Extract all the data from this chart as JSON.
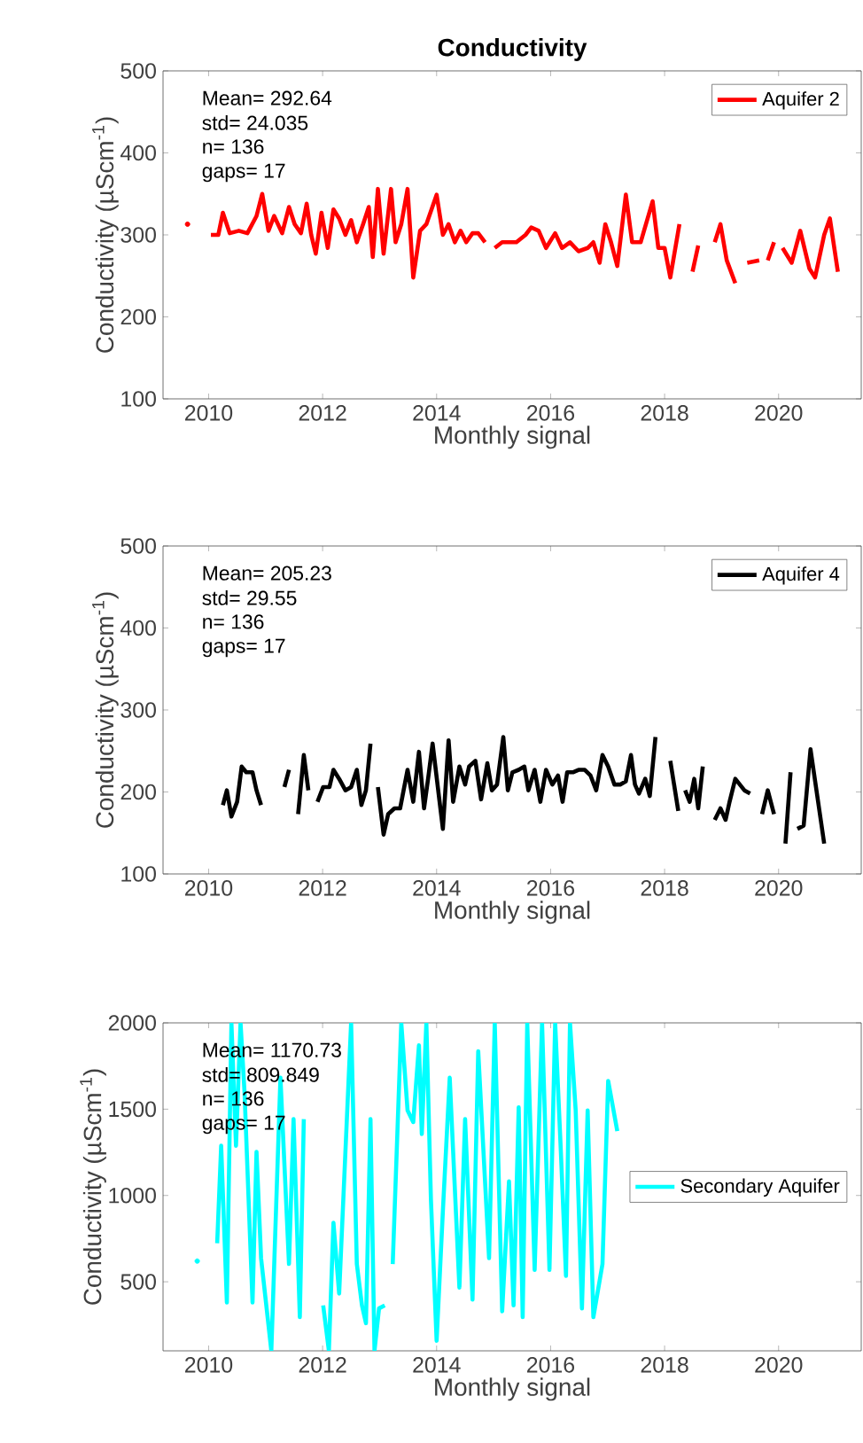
{
  "chart_data": [
    {
      "type": "line",
      "title": "Conductivity",
      "xlabel": "Monthly signal",
      "ylabel": "Conductivity (µScm$^{-1}$)",
      "annotations": [
        "Mean=  292.64",
        "std=      24.035",
        "n=        136",
        "gaps= 17"
      ],
      "xlim": [
        2009.2,
        2021.45
      ],
      "ylim": [
        100,
        500
      ],
      "xticks": [
        2010,
        2012,
        2014,
        2016,
        2018,
        2020
      ],
      "yticks": [
        100,
        200,
        300,
        400,
        500
      ],
      "legend": "top right",
      "series": [
        {
          "name": "Aquifer 2",
          "color": "#ff0000",
          "x": [
            2009.63,
            2009.8,
            2010.04,
            2010.17,
            2010.25,
            2010.37,
            2010.53,
            2010.68,
            2010.84,
            2010.94,
            2011.05,
            2011.15,
            2011.29,
            2011.41,
            2011.51,
            2011.62,
            2011.72,
            2011.8,
            2011.88,
            2011.98,
            2012.09,
            2012.19,
            2012.29,
            2012.4,
            2012.5,
            2012.6,
            2012.71,
            2012.81,
            2012.88,
            2012.97,
            2013.07,
            2013.2,
            2013.28,
            2013.38,
            2013.49,
            2013.59,
            2013.71,
            2013.82,
            2014.0,
            2014.11,
            2014.21,
            2014.32,
            2014.42,
            2014.52,
            2014.63,
            2014.73,
            2014.85,
            2014.94,
            2015.02,
            2015.15,
            2015.25,
            2015.4,
            2015.56,
            2015.66,
            2015.79,
            2015.92,
            2016.08,
            2016.2,
            2016.34,
            2016.49,
            2016.65,
            2016.75,
            2016.86,
            2016.96,
            2017.06,
            2017.17,
            2017.32,
            2017.43,
            2017.58,
            2017.79,
            2017.89,
            2018.0,
            2018.1,
            2018.26,
            2018.38,
            2018.49,
            2018.59,
            2018.7,
            2018.88,
            2018.98,
            2019.09,
            2019.24,
            2019.35,
            2019.45,
            2019.66,
            2019.74,
            2019.81,
            2019.92,
            2020.0,
            2020.07,
            2020.23,
            2020.38,
            2020.54,
            2020.64,
            2020.8,
            2020.9,
            2021.04
          ],
          "values": [
            313,
            null,
            300,
            300,
            327,
            302,
            305,
            302,
            323,
            350,
            305,
            323,
            302,
            334,
            313,
            302,
            338,
            300,
            277,
            327,
            284,
            331,
            320,
            300,
            318,
            291,
            313,
            334,
            273,
            356,
            277,
            356,
            291,
            313,
            356,
            248,
            305,
            313,
            349,
            300,
            313,
            291,
            305,
            291,
            302,
            302,
            291,
            null,
            284,
            291,
            291,
            291,
            300,
            309,
            305,
            284,
            302,
            284,
            291,
            280,
            284,
            291,
            266,
            313,
            291,
            262,
            349,
            291,
            291,
            341,
            284,
            284,
            248,
            313,
            null,
            255,
            287,
            null,
            291,
            313,
            269,
            241,
            null,
            266,
            269,
            null,
            269,
            291,
            null,
            284,
            266,
            305,
            259,
            248,
            300,
            320,
            255
          ]
        }
      ]
    },
    {
      "type": "line",
      "xlabel": "Monthly signal",
      "ylabel": "Conductivity (µScm$^{-1}$)",
      "annotations": [
        "Mean=  205.23",
        "std=      29.55",
        "n=        136",
        "gaps= 17"
      ],
      "xlim": [
        2009.2,
        2021.45
      ],
      "ylim": [
        100,
        500
      ],
      "xticks": [
        2010,
        2012,
        2014,
        2016,
        2018,
        2020
      ],
      "yticks": [
        100,
        200,
        300,
        400,
        500
      ],
      "legend": "top right",
      "series": [
        {
          "name": "Aquifer 4",
          "color": "#000000",
          "x": [
            2010.25,
            2010.32,
            2010.4,
            2010.5,
            2010.58,
            2010.66,
            2010.77,
            2010.84,
            2010.92,
            2011.1,
            2011.33,
            2011.41,
            2011.49,
            2011.57,
            2011.67,
            2011.75,
            2011.83,
            2011.91,
            2012.01,
            2012.12,
            2012.19,
            2012.29,
            2012.4,
            2012.5,
            2012.6,
            2012.68,
            2012.76,
            2012.84,
            2012.9,
            2012.97,
            2013.07,
            2013.15,
            2013.26,
            2013.36,
            2013.49,
            2013.59,
            2013.69,
            2013.78,
            2013.85,
            2013.93,
            2014.04,
            2014.11,
            2014.21,
            2014.29,
            2014.4,
            2014.5,
            2014.57,
            2014.68,
            2014.78,
            2014.89,
            2014.97,
            2015.06,
            2015.17,
            2015.25,
            2015.33,
            2015.44,
            2015.54,
            2015.61,
            2015.72,
            2015.82,
            2015.92,
            2016.03,
            2016.13,
            2016.21,
            2016.29,
            2016.39,
            2016.49,
            2016.6,
            2016.7,
            2016.8,
            2016.91,
            2017.01,
            2017.12,
            2017.22,
            2017.32,
            2017.41,
            2017.48,
            2017.55,
            2017.66,
            2017.74,
            2017.84,
            2017.97,
            2018.1,
            2018.24,
            2018.3,
            2018.36,
            2018.44,
            2018.52,
            2018.59,
            2018.67,
            2018.78,
            2018.88,
            2018.98,
            2019.07,
            2019.14,
            2019.24,
            2019.4,
            2019.5,
            2019.6,
            2019.71,
            2019.81,
            2019.92,
            2020.02,
            2020.12,
            2020.21,
            2020.27,
            2020.33,
            2020.44,
            2020.56,
            2020.8
          ],
          "values": [
            184,
            202,
            170,
            188,
            231,
            224,
            224,
            202,
            184,
            null,
            206,
            227,
            null,
            173,
            245,
            202,
            null,
            188,
            206,
            206,
            227,
            216,
            202,
            206,
            227,
            184,
            202,
            259,
            null,
            206,
            148,
            173,
            180,
            180,
            227,
            188,
            249,
            180,
            216,
            259,
            195,
            155,
            263,
            188,
            231,
            209,
            231,
            238,
            191,
            235,
            202,
            209,
            267,
            202,
            224,
            227,
            231,
            202,
            227,
            188,
            227,
            209,
            220,
            188,
            224,
            224,
            227,
            227,
            220,
            202,
            245,
            231,
            209,
            209,
            213,
            245,
            209,
            198,
            216,
            195,
            267,
            null,
            238,
            177,
            null,
            202,
            188,
            216,
            180,
            231,
            null,
            166,
            180,
            166,
            188,
            216,
            202,
            198,
            null,
            173,
            202,
            173,
            null,
            137,
            224,
            null,
            155,
            159,
            252,
            137
          ]
        }
      ]
    },
    {
      "type": "line",
      "xlabel": "Monthly signal",
      "ylabel": "Conductivity (µScm$^{-1}$)",
      "annotations": [
        "Mean=  1170.73",
        "std=      809.849",
        "n=        136",
        "gaps=  17"
      ],
      "xlim": [
        2009.2,
        2021.45
      ],
      "ylim": [
        100,
        2000
      ],
      "xticks": [
        2010,
        2012,
        2014,
        2016,
        2018,
        2020
      ],
      "yticks": [
        500,
        1000,
        1500,
        2000
      ],
      "legend": "right",
      "series": [
        {
          "name": "Secondary Aquifer",
          "color": "#00ffff",
          "x": [
            2009.8,
            2010.0,
            2010.15,
            2010.22,
            2010.32,
            2010.4,
            2010.48,
            2010.56,
            2010.63,
            2010.77,
            2010.84,
            2010.92,
            2011.1,
            2011.26,
            2011.41,
            2011.49,
            2011.6,
            2011.67,
            2011.85,
            2012.01,
            2012.11,
            2012.19,
            2012.29,
            2012.4,
            2012.5,
            2012.6,
            2012.69,
            2012.76,
            2012.84,
            2012.91,
            2012.99,
            2013.09,
            2013.16,
            2013.23,
            2013.38,
            2013.49,
            2013.59,
            2013.69,
            2013.74,
            2013.82,
            2013.9,
            2014.0,
            2014.11,
            2014.23,
            2014.4,
            2014.5,
            2014.63,
            2014.73,
            2014.92,
            2015.02,
            2015.15,
            2015.27,
            2015.35,
            2015.44,
            2015.51,
            2015.59,
            2015.72,
            2015.85,
            2015.98,
            2016.08,
            2016.18,
            2016.27,
            2016.34,
            2016.44,
            2016.55,
            2016.65,
            2016.75,
            2016.91,
            2017.01,
            2017.17
          ],
          "values": [
            620,
            null,
            723,
            1288,
            380,
            2000,
            1288,
            2000,
            1596,
            380,
            1253,
            637,
            100,
            1682,
            603,
            1442,
            295,
            1442,
            null,
            363,
            100,
            842,
            432,
            1253,
            2000,
            603,
            363,
            260,
            1442,
            100,
            346,
            363,
            null,
            603,
            2000,
            1493,
            1425,
            1870,
            1356,
            2000,
            979,
            158,
            911,
            1682,
            466,
            1442,
            397,
            1836,
            637,
            2000,
            329,
            1082,
            363,
            1510,
            295,
            2000,
            569,
            2000,
            569,
            2000,
            1253,
            534,
            2000,
            1493,
            346,
            1493,
            295,
            603,
            1664,
            1373
          ]
        }
      ]
    }
  ]
}
